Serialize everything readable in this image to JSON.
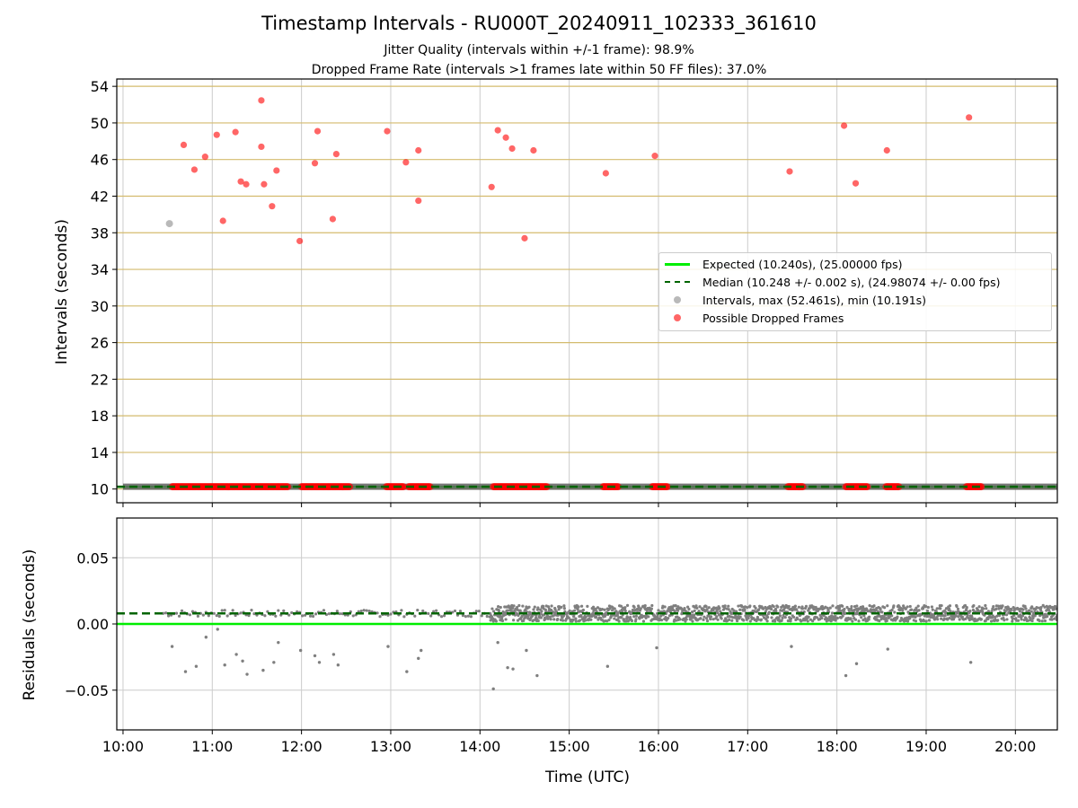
{
  "title": "Timestamp Intervals - RU000T_20240911_102333_361610",
  "subtitle1": "Jitter Quality (intervals within +/-1 frame): 98.9%",
  "subtitle2": "Dropped Frame Rate (intervals >1 frames late within 50 FF files): 37.0%",
  "colors": {
    "expected": "#00ee00",
    "median": "#006400",
    "intervals": "#7f7f7f",
    "dropped": "#ff0000",
    "grid_top": "#d4bb6e",
    "grid": "#cccccc"
  },
  "chart_data": [
    {
      "type": "scatter",
      "title": "",
      "xlabel": "",
      "ylabel": "Intervals (seconds)",
      "xlim": [
        9.93,
        20.47
      ],
      "ylim": [
        8.5,
        54.8
      ],
      "x_ticks": [
        10,
        11,
        12,
        13,
        14,
        15,
        16,
        17,
        18,
        19,
        20
      ],
      "y_ticks": [
        10,
        14,
        18,
        22,
        26,
        30,
        34,
        38,
        42,
        46,
        50,
        54
      ],
      "y_tick_labels": [
        "10",
        "14",
        "18",
        "22",
        "26",
        "30",
        "34",
        "38",
        "42",
        "46",
        "50",
        "54"
      ],
      "grid": true,
      "legend_position": "center-right",
      "expected": {
        "name": "Expected (10.240s), (25.00000 fps)",
        "value": 10.24
      },
      "median": {
        "name": "Median (10.248 +/- 0.002 s), (24.98074 +/- 0.00 fps)",
        "value": 10.248
      },
      "intervals_series": {
        "name": "Intervals, max (52.461s), min (10.191s)",
        "baseline_y": 10.248,
        "x_start": 10.0,
        "x_end": 20.47,
        "outliers": [
          [
            10.52,
            39.0
          ]
        ]
      },
      "dropped_series": {
        "name": "Possible Dropped Frames",
        "points": [
          [
            10.68,
            47.6
          ],
          [
            10.8,
            44.9
          ],
          [
            10.92,
            46.3
          ],
          [
            11.05,
            48.7
          ],
          [
            11.12,
            39.3
          ],
          [
            11.26,
            49.0
          ],
          [
            11.32,
            43.6
          ],
          [
            11.38,
            43.3
          ],
          [
            11.55,
            47.4
          ],
          [
            11.55,
            52.46
          ],
          [
            11.58,
            43.3
          ],
          [
            11.67,
            40.9
          ],
          [
            11.72,
            44.8
          ],
          [
            11.98,
            37.1
          ],
          [
            12.15,
            45.6
          ],
          [
            12.18,
            49.1
          ],
          [
            12.35,
            39.5
          ],
          [
            12.39,
            46.6
          ],
          [
            12.96,
            49.1
          ],
          [
            13.17,
            45.7
          ],
          [
            13.31,
            41.5
          ],
          [
            13.31,
            47.0
          ],
          [
            14.13,
            43.0
          ],
          [
            14.2,
            49.2
          ],
          [
            14.29,
            48.4
          ],
          [
            14.36,
            47.2
          ],
          [
            14.5,
            37.4
          ],
          [
            14.6,
            47.0
          ],
          [
            15.41,
            44.5
          ],
          [
            15.96,
            46.4
          ],
          [
            17.47,
            44.7
          ],
          [
            18.08,
            49.7
          ],
          [
            18.21,
            43.4
          ],
          [
            18.56,
            47.0
          ],
          [
            19.48,
            50.6
          ]
        ],
        "baseline_ranges": [
          [
            10.55,
            11.85
          ],
          [
            12.0,
            12.55
          ],
          [
            12.95,
            13.15
          ],
          [
            13.2,
            13.45
          ],
          [
            14.15,
            14.75
          ],
          [
            15.38,
            15.55
          ],
          [
            15.93,
            16.1
          ],
          [
            17.45,
            17.62
          ],
          [
            18.1,
            18.35
          ],
          [
            18.55,
            18.7
          ],
          [
            19.45,
            19.62
          ]
        ]
      }
    },
    {
      "type": "scatter",
      "title": "",
      "xlabel": "Time (UTC)",
      "ylabel": "Residuals (seconds)",
      "xlim": [
        9.93,
        20.47
      ],
      "ylim": [
        -0.08,
        0.08
      ],
      "x_ticks": [
        10,
        11,
        12,
        13,
        14,
        15,
        16,
        17,
        18,
        19,
        20
      ],
      "x_tick_labels": [
        "10:00",
        "11:00",
        "12:00",
        "13:00",
        "14:00",
        "15:00",
        "16:00",
        "17:00",
        "18:00",
        "19:00",
        "20:00"
      ],
      "y_ticks": [
        -0.05,
        0.0,
        0.05
      ],
      "y_tick_labels": [
        "−0.05",
        "0.00",
        "0.05"
      ],
      "grid": true,
      "expected_residual": 0.0,
      "median_residual": 0.008,
      "outliers": [
        [
          10.55,
          -0.017
        ],
        [
          10.7,
          -0.036
        ],
        [
          10.82,
          -0.032
        ],
        [
          10.93,
          -0.01
        ],
        [
          11.06,
          -0.004
        ],
        [
          11.14,
          -0.031
        ],
        [
          11.27,
          -0.023
        ],
        [
          11.34,
          -0.028
        ],
        [
          11.39,
          -0.038
        ],
        [
          11.57,
          -0.035
        ],
        [
          11.69,
          -0.029
        ],
        [
          11.74,
          -0.014
        ],
        [
          11.99,
          -0.02
        ],
        [
          12.15,
          -0.024
        ],
        [
          12.2,
          -0.029
        ],
        [
          12.36,
          -0.023
        ],
        [
          12.41,
          -0.031
        ],
        [
          12.97,
          -0.017
        ],
        [
          13.18,
          -0.036
        ],
        [
          13.31,
          -0.026
        ],
        [
          13.34,
          -0.02
        ],
        [
          14.15,
          -0.049
        ],
        [
          14.2,
          -0.014
        ],
        [
          14.31,
          -0.033
        ],
        [
          14.37,
          -0.034
        ],
        [
          14.52,
          -0.02
        ],
        [
          14.64,
          -0.039
        ],
        [
          15.43,
          -0.032
        ],
        [
          15.98,
          -0.018
        ],
        [
          17.49,
          -0.017
        ],
        [
          18.1,
          -0.039
        ],
        [
          18.22,
          -0.03
        ],
        [
          18.57,
          -0.019
        ],
        [
          19.5,
          -0.029
        ]
      ]
    }
  ]
}
